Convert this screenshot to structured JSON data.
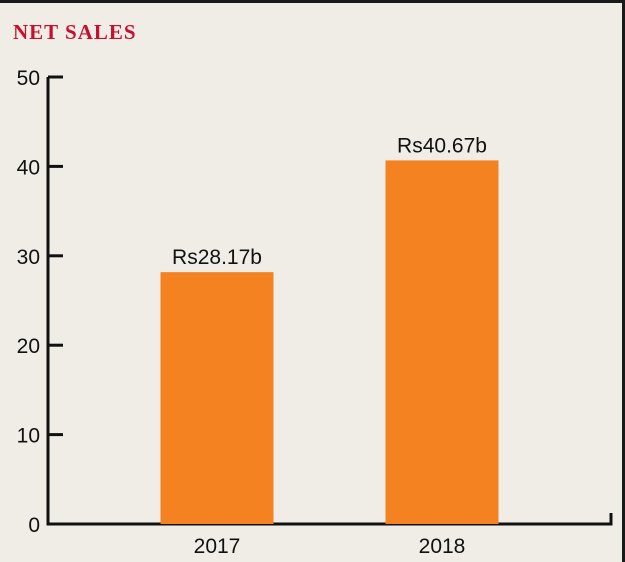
{
  "title": "NET SALES",
  "colors": {
    "bar": "#f58220",
    "axis": "#111111",
    "title": "#c8102e",
    "background": "#efede6"
  },
  "chart_data": {
    "type": "bar",
    "title": "NET SALES",
    "categories": [
      "2017",
      "2018"
    ],
    "values": [
      28.17,
      40.67
    ],
    "data_labels": [
      "Rs28.17b",
      "Rs40.67b"
    ],
    "ylim": [
      0,
      50
    ],
    "yticks": [
      0,
      10,
      20,
      30,
      40,
      50
    ],
    "grid": false,
    "xlabel": "",
    "ylabel": ""
  }
}
